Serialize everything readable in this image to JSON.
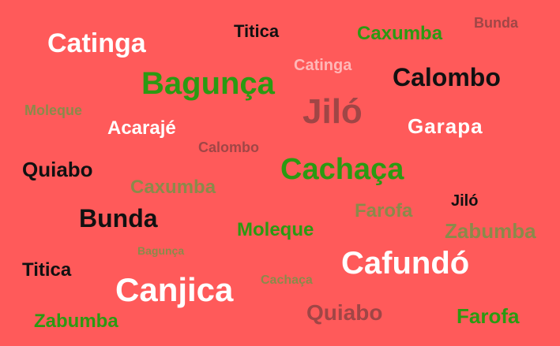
{
  "background": "#ff5a5a",
  "palette": {
    "white": "#ffffff",
    "black": "#111111",
    "green": "#2b9a12",
    "olive": "#8a8a4a",
    "brown": "#a04646",
    "pink": "#ffb7b7"
  },
  "words": [
    {
      "text": "Catinga"
    },
    {
      "text": "Titica"
    },
    {
      "text": "Caxumba"
    },
    {
      "text": "Bunda"
    },
    {
      "text": "Catinga"
    },
    {
      "text": "Bagunça"
    },
    {
      "text": "Calombo"
    },
    {
      "text": "Moleque"
    },
    {
      "text": "Jiló"
    },
    {
      "text": "Acarajé"
    },
    {
      "text": "Garapa"
    },
    {
      "text": "Calombo"
    },
    {
      "text": "Quiabo"
    },
    {
      "text": "Cachaça"
    },
    {
      "text": "Caxumba"
    },
    {
      "text": "Jiló"
    },
    {
      "text": "Bunda"
    },
    {
      "text": "Farofa"
    },
    {
      "text": "Moleque"
    },
    {
      "text": "Zabumba"
    },
    {
      "text": "Bagunça"
    },
    {
      "text": "Titica"
    },
    {
      "text": "Cafundó"
    },
    {
      "text": "Canjica"
    },
    {
      "text": "Cachaça"
    },
    {
      "text": "Zabumba"
    },
    {
      "text": "Quiabo"
    },
    {
      "text": "Farofa"
    }
  ]
}
